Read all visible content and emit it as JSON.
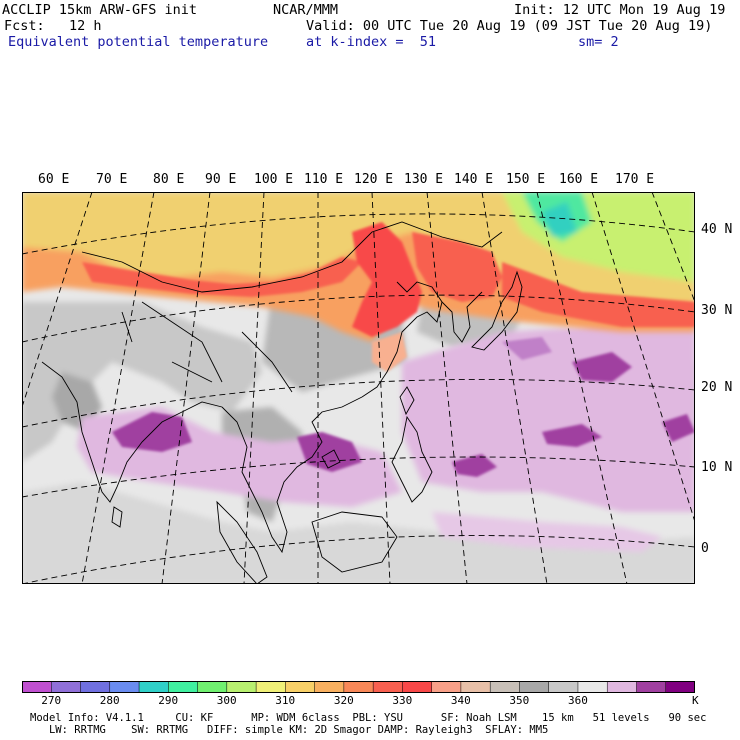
{
  "header": {
    "model": "ACCLIP 15km ARW-GFS init",
    "org": "NCAR/MMM",
    "init": "Init: 12 UTC Mon 19 Aug 19",
    "fcst": "Fcst:   12 h",
    "valid": "Valid: 00 UTC Tue 20 Aug 19 (09 JST Tue 20 Aug 19)",
    "field": "Equivalent potential temperature",
    "level": "at k-index =  51",
    "smooth": "sm= 2"
  },
  "map": {
    "lon_labels": [
      "60 E",
      "70 E",
      "80 E",
      "90 E",
      "100 E",
      "110 E",
      "120 E",
      "130 E",
      "140 E",
      "150 E",
      "160 E",
      "170 E"
    ],
    "lat_labels": [
      "40 N",
      "30 N",
      "20 N",
      "10 N",
      "0"
    ]
  },
  "legend": {
    "colors": [
      "#c050d0",
      "#9070d8",
      "#7070e0",
      "#6a8cf0",
      "#30d0c8",
      "#40f0a0",
      "#70f070",
      "#b8f070",
      "#f0f078",
      "#f8d068",
      "#f8b060",
      "#f88858",
      "#f86050",
      "#f84848",
      "#f8a088",
      "#e8c0a8",
      "#c8c0b8",
      "#a8a8a8",
      "#c8c8c8",
      "#e8e8e8",
      "#e0b8e0",
      "#a040a0",
      "#800080"
    ],
    "tick_labels": [
      "270",
      "280",
      "290",
      "300",
      "310",
      "320",
      "330",
      "340",
      "350",
      "360",
      "K"
    ]
  },
  "footer": {
    "line1": "Model Info: V4.1.1     CU: KF      MP: WDM 6class  PBL: YSU      SF: Noah LSM    15 km   51 levels   90 sec",
    "line2": "   LW: RRTMG    SW: RRTMG   DIFF: simple KM: 2D Smagor DAMP: Rayleigh3  SFLAY: MM5"
  }
}
